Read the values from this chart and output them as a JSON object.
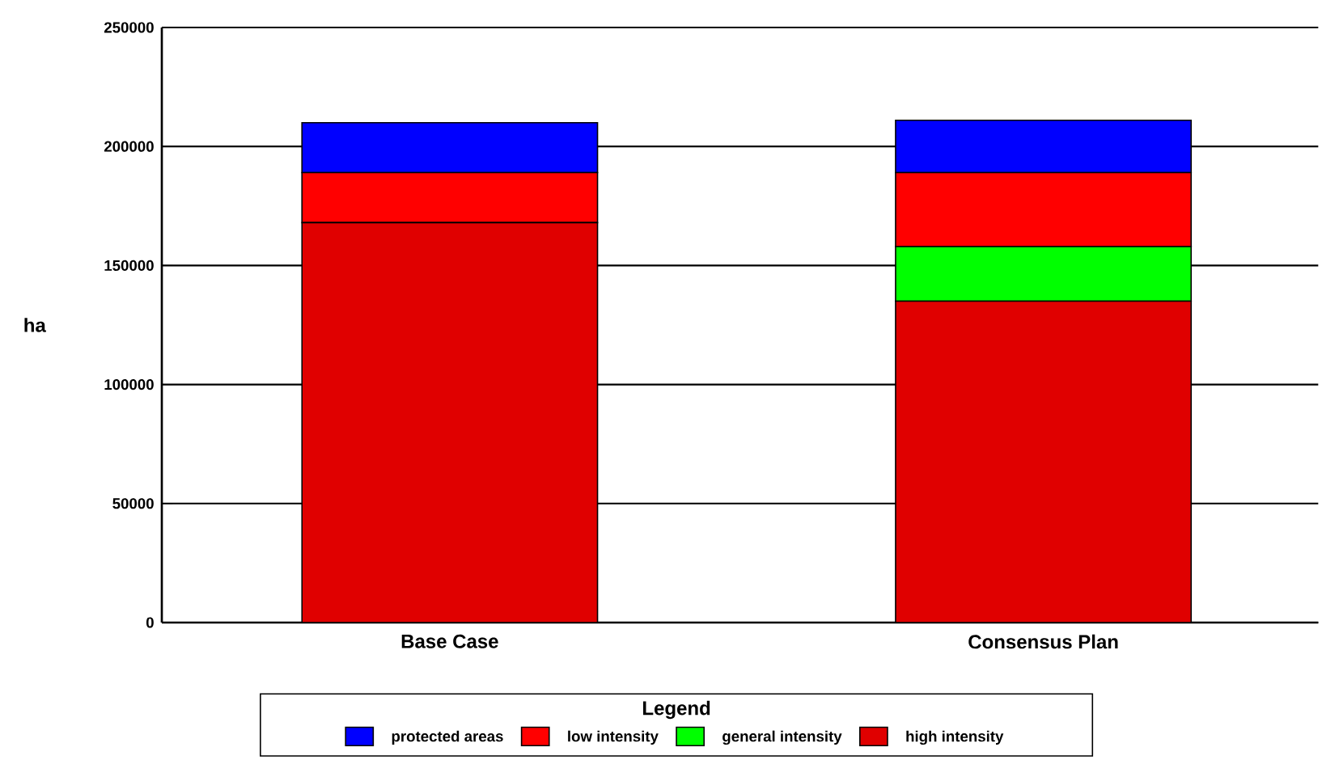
{
  "chart_data": {
    "type": "bar",
    "stacked": true,
    "ylabel": "ha",
    "legend_title": "Legend",
    "categories": [
      "Base Case",
      "Consensus Plan"
    ],
    "series": [
      {
        "name": "high intensity",
        "color": "#e00000",
        "values": [
          168000,
          135000
        ]
      },
      {
        "name": "general intensity",
        "color": "#00ff00",
        "values": [
          0,
          23000
        ]
      },
      {
        "name": "low intensity",
        "color": "#ff0000",
        "values": [
          21000,
          31000
        ]
      },
      {
        "name": "protected areas",
        "color": "#0000ff",
        "values": [
          21000,
          22000
        ]
      }
    ],
    "ylim": [
      0,
      250000
    ],
    "yticks": [
      0,
      50000,
      100000,
      150000,
      200000,
      250000
    ],
    "grid": "y",
    "legend": "bottom"
  }
}
